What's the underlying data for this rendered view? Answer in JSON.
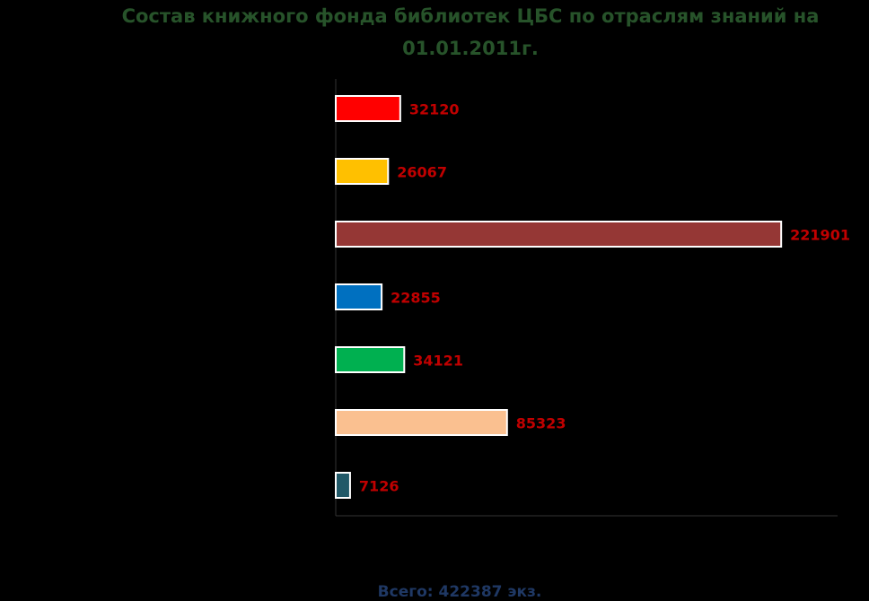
{
  "chart_data": {
    "type": "hbar",
    "title": "Состав книжного фонда библиотек ЦБС по отраслям знаний на 01.01.2011г.",
    "categories": [
      null,
      null,
      null,
      null,
      null,
      null,
      null
    ],
    "values": [
      32120,
      26067,
      221901,
      22855,
      34121,
      85323,
      7126
    ],
    "colors": [
      "#ff0000",
      "#ffc000",
      "#953735",
      "#0070c0",
      "#00b050",
      "#fac090",
      "#215968"
    ],
    "xlim": [
      0,
      250000
    ],
    "footer": "Всего: 422387 экз."
  }
}
